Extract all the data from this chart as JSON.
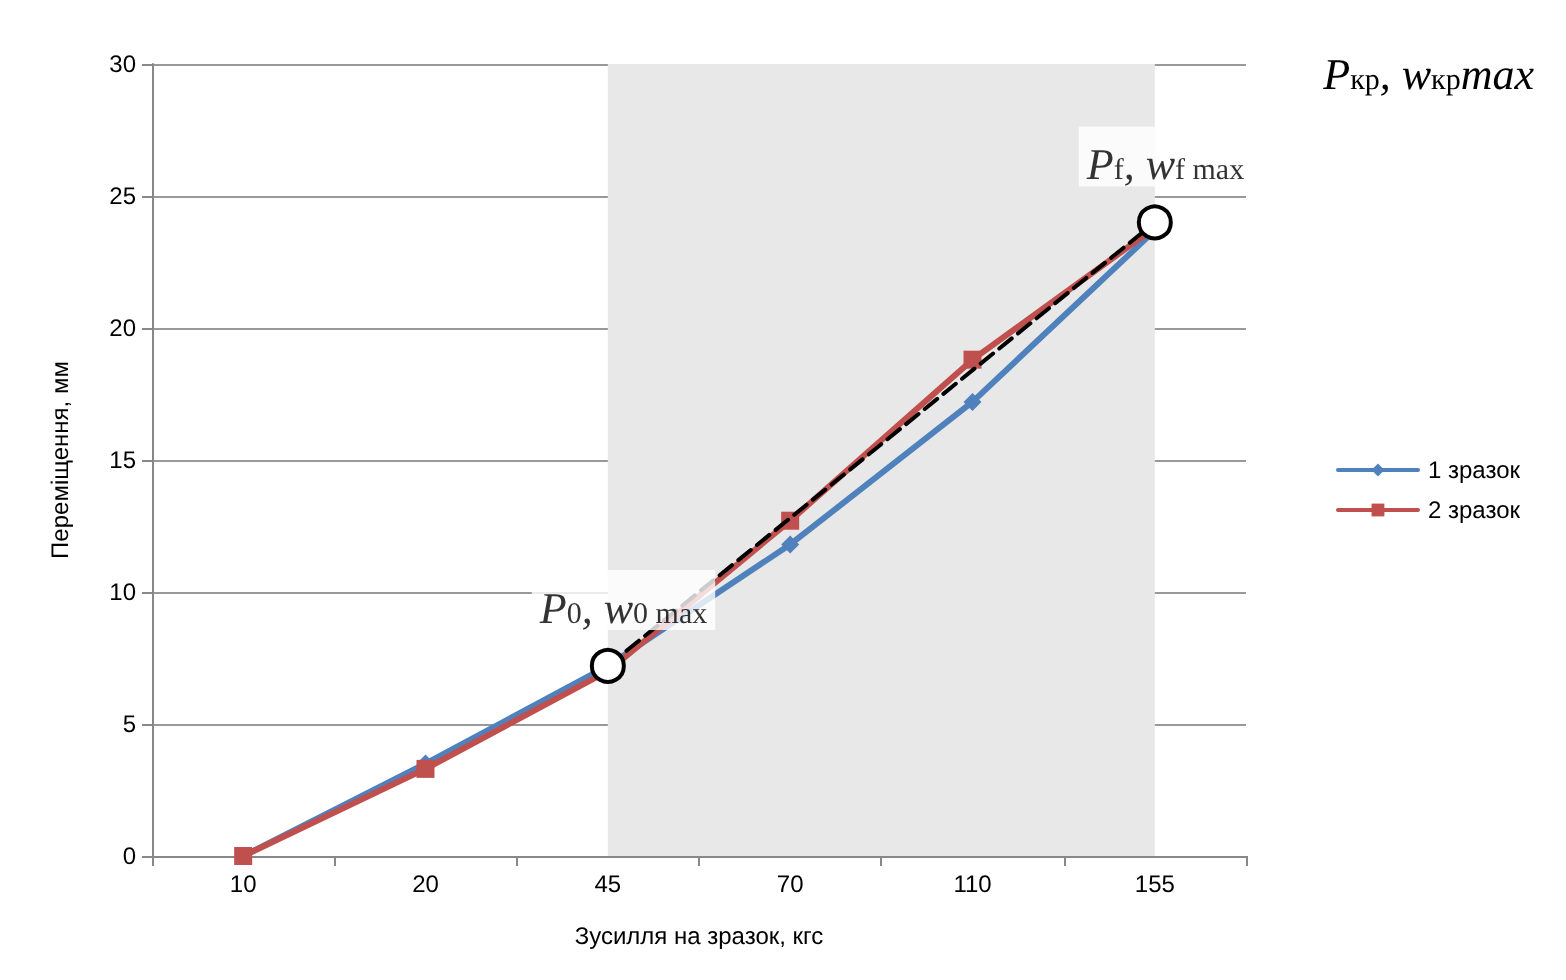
{
  "chart_data": {
    "type": "line",
    "xlabel": "Зусилля на зразок, кгс",
    "ylabel": "Переміщення, мм",
    "categories": [
      "10",
      "20",
      "45",
      "70",
      "110",
      "155"
    ],
    "series": [
      {
        "name": "1 зразок",
        "color": "#4f81bd",
        "marker": "diamond",
        "values": [
          0,
          3.5,
          7.2,
          11.8,
          17.2,
          23.7
        ]
      },
      {
        "name": "2 зразок",
        "color": "#c0504d",
        "marker": "square",
        "values": [
          0,
          3.3,
          7.0,
          12.7,
          18.8,
          23.8
        ]
      },
      {
        "color": "#000000",
        "marker": "circle",
        "line_style": "dashed",
        "x": [
          "45",
          "155"
        ],
        "values": [
          7.2,
          24.0
        ]
      }
    ],
    "ylim": [
      0,
      30
    ],
    "yticks": [
      0,
      5,
      10,
      15,
      20,
      25,
      30
    ],
    "grid": "y",
    "legend": "right",
    "bands": [
      {
        "axis": "x",
        "from": "45",
        "to": "155",
        "color": "#e8e8e8"
      }
    ],
    "annotations": [
      {
        "text": "P$_{0}$, w$_{0 max}$",
        "x": "45",
        "y": 7.2
      },
      {
        "text": "P$_{f}$, w$_{f max}$",
        "x": "155",
        "y": 24.0
      },
      "P$_{кр}$, w$_{кр}$max"
    ]
  }
}
